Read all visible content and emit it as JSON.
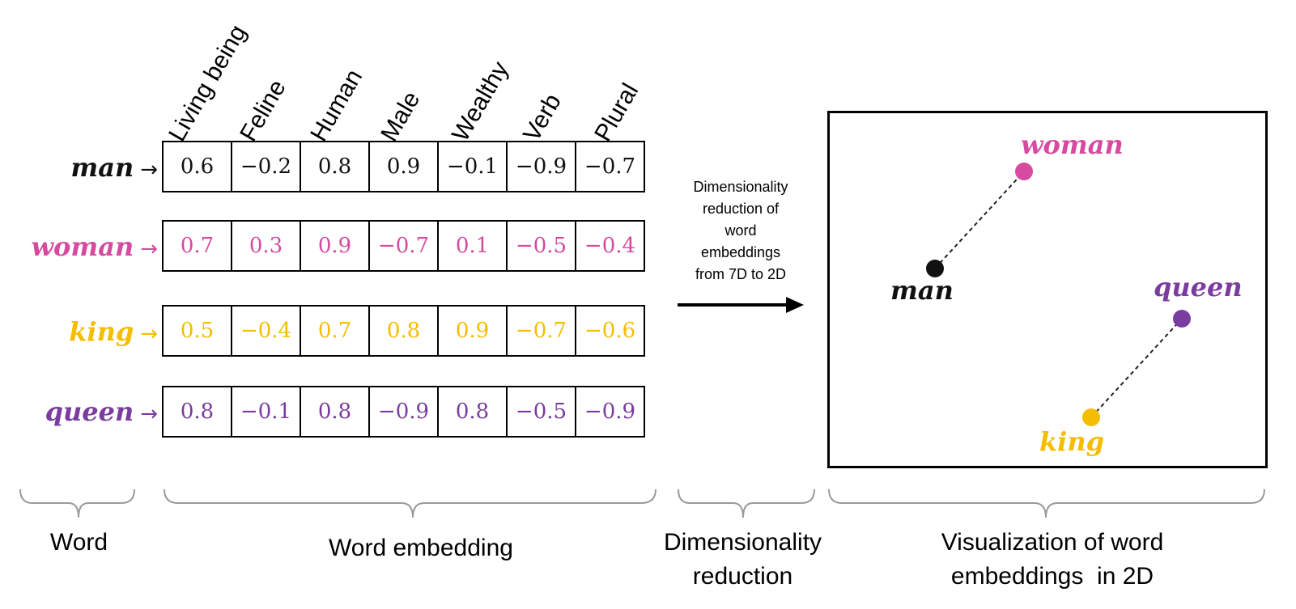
{
  "features": [
    "Living being",
    "Feline",
    "Human",
    "Male",
    "Wealthy",
    "Verb",
    "Plural"
  ],
  "arrow_symbol": "→",
  "words": [
    {
      "word": "man",
      "color": "#111111",
      "values": [
        "0.6",
        "−0.2",
        "0.8",
        "0.9",
        "−0.1",
        "−0.9",
        "−0.7"
      ]
    },
    {
      "word": "woman",
      "color": "#d64aa0",
      "values": [
        "0.7",
        "0.3",
        "0.9",
        "−0.7",
        "0.1",
        "−0.5",
        "−0.4"
      ]
    },
    {
      "word": "king",
      "color": "#f5bd00",
      "values": [
        "0.5",
        "−0.4",
        "0.7",
        "0.8",
        "0.9",
        "−0.7",
        "−0.6"
      ]
    },
    {
      "word": "queen",
      "color": "#7a3c9e",
      "values": [
        "0.8",
        "−0.1",
        "0.8",
        "−0.9",
        "0.8",
        "−0.5",
        "−0.9"
      ]
    }
  ],
  "reduction_text": [
    "Dimensionality",
    "reduction of",
    "word",
    "embeddings",
    "from 7D to 2D"
  ],
  "plot_points": [
    {
      "word": "woman",
      "color": "#d64aa0"
    },
    {
      "word": "man",
      "color": "#111111"
    },
    {
      "word": "queen",
      "color": "#7a3c9e"
    },
    {
      "word": "king",
      "color": "#f5bd00"
    }
  ],
  "captions": {
    "word": "Word",
    "embedding": "Word embedding",
    "reduction": [
      "Dimensionality",
      "reduction"
    ],
    "visualization": [
      "Visualization of word",
      "embeddings  in 2D"
    ]
  }
}
